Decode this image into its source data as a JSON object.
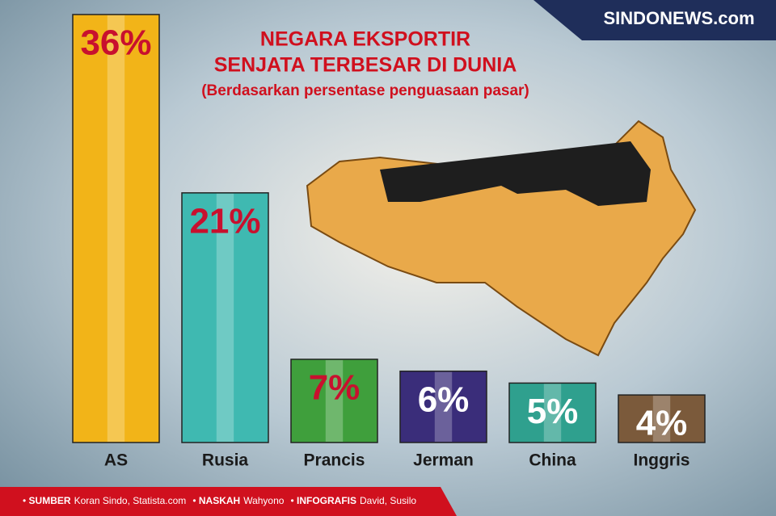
{
  "logo": "SINDONEWS.com",
  "chart_data": {
    "type": "bar",
    "title": [
      "NEGARA EKSPORTIR",
      "SENJATA TERBESAR DI DUNIA"
    ],
    "subtitle": "(Berdasarkan persentase penguasaan pasar)",
    "categories": [
      "AS",
      "Rusia",
      "Prancis",
      "Jerman",
      "China",
      "Inggris"
    ],
    "values": [
      36,
      21,
      7,
      6,
      5,
      4
    ],
    "value_labels": [
      "36%",
      "21%",
      "7%",
      "6%",
      "5%",
      "4%"
    ],
    "colors": [
      "#f2b418",
      "#3fb9b1",
      "#3f9f3c",
      "#3a2d7a",
      "#2fa08e",
      "#7b5a3b"
    ],
    "label_colors": [
      "#c8102e",
      "#c8102e",
      "#c8102e",
      "#ffffff",
      "#ffffff",
      "#ffffff"
    ]
  },
  "footer": [
    {
      "label": "SUMBER",
      "text": "Koran Sindo, Statista.com"
    },
    {
      "label": "NASKAH",
      "text": "Wahyono"
    },
    {
      "label": "INFOGRAFIS",
      "text": "David, Susilo"
    }
  ]
}
